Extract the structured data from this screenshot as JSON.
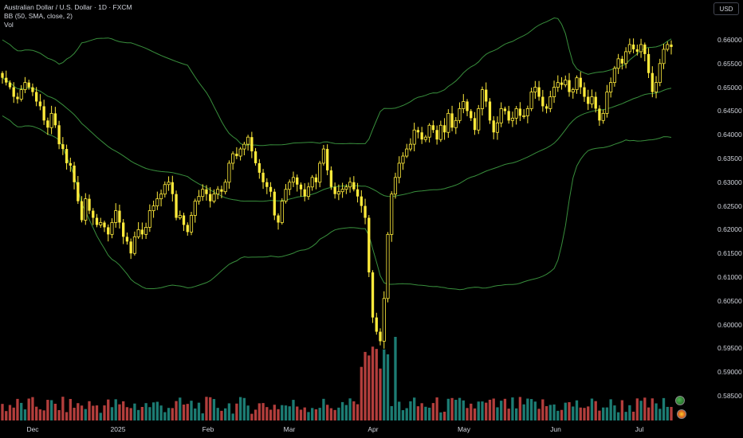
{
  "legend": {
    "symbol": "Australian Dollar / U.S. Dollar · 1D · FXCM",
    "bb": "BB (50, SMA, close, 2)",
    "vol": "Vol"
  },
  "axis": {
    "currency": "USD",
    "price_labels": [
      "0.66000",
      "0.65500",
      "0.65000",
      "0.64500",
      "0.64000",
      "0.63500",
      "0.63000",
      "0.62500",
      "0.62000",
      "0.61500",
      "0.61000",
      "0.60500",
      "0.60000",
      "0.59500",
      "0.59000",
      "0.58500"
    ],
    "time_labels": [
      "Dec",
      "2025",
      "Feb",
      "Mar",
      "Apr",
      "May",
      "Jun",
      "Jul"
    ]
  },
  "colors": {
    "up": "#ffeb3b",
    "down": "#ffeb3b",
    "band": "#388e3c",
    "vol_up": "#26a69a",
    "vol_down": "#ef5350"
  },
  "chart_data": {
    "type": "candlestick",
    "title": "Australian Dollar / U.S. Dollar · 1D · FXCM",
    "ylim": [
      0.585,
      0.667
    ],
    "close": [
      0.652,
      0.651,
      0.65,
      0.648,
      0.6475,
      0.6495,
      0.651,
      0.65,
      0.649,
      0.647,
      0.646,
      0.643,
      0.6415,
      0.6445,
      0.642,
      0.638,
      0.637,
      0.634,
      0.6335,
      0.63,
      0.626,
      0.622,
      0.6265,
      0.624,
      0.6225,
      0.621,
      0.6215,
      0.6205,
      0.619,
      0.6215,
      0.624,
      0.6215,
      0.6185,
      0.6175,
      0.615,
      0.6185,
      0.62,
      0.619,
      0.6205,
      0.624,
      0.625,
      0.6265,
      0.6275,
      0.6295,
      0.63,
      0.6275,
      0.6225,
      0.623,
      0.621,
      0.6195,
      0.623,
      0.626,
      0.627,
      0.6285,
      0.6275,
      0.626,
      0.6275,
      0.6285,
      0.628,
      0.63,
      0.634,
      0.636,
      0.6355,
      0.637,
      0.638,
      0.6395,
      0.6365,
      0.634,
      0.632,
      0.63,
      0.629,
      0.628,
      0.623,
      0.6215,
      0.626,
      0.6285,
      0.63,
      0.631,
      0.6295,
      0.6285,
      0.627,
      0.629,
      0.631,
      0.63,
      0.634,
      0.637,
      0.6325,
      0.629,
      0.6275,
      0.628,
      0.6285,
      0.629,
      0.63,
      0.6285,
      0.627,
      0.625,
      0.6225,
      0.611,
      0.6015,
      0.5985,
      0.5965,
      0.6055,
      0.619,
      0.6275,
      0.631,
      0.634,
      0.6355,
      0.637,
      0.638,
      0.641,
      0.6405,
      0.639,
      0.6395,
      0.642,
      0.641,
      0.639,
      0.642,
      0.6405,
      0.6445,
      0.6415,
      0.643,
      0.6455,
      0.647,
      0.645,
      0.6435,
      0.641,
      0.6455,
      0.6495,
      0.647,
      0.643,
      0.6405,
      0.6425,
      0.6455,
      0.645,
      0.643,
      0.6435,
      0.6455,
      0.644,
      0.644,
      0.6455,
      0.649,
      0.65,
      0.648,
      0.646,
      0.6455,
      0.648,
      0.65,
      0.651,
      0.6505,
      0.6515,
      0.649,
      0.6495,
      0.652,
      0.65,
      0.648,
      0.6465,
      0.648,
      0.6455,
      0.643,
      0.6445,
      0.649,
      0.651,
      0.654,
      0.656,
      0.655,
      0.6575,
      0.659,
      0.658,
      0.6575,
      0.659,
      0.657,
      0.653,
      0.649,
      0.651,
      0.655,
      0.658,
      0.659,
      0.6585
    ]
  }
}
